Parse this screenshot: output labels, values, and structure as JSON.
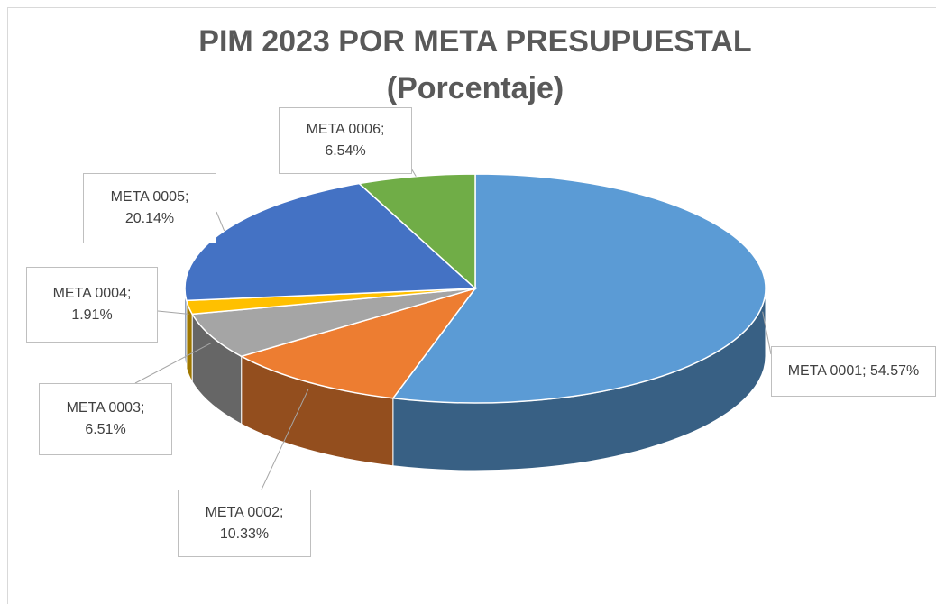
{
  "chart_data": {
    "type": "pie",
    "title": "PIM 2023 POR META PRESUPUESTAL (Porcentaje)",
    "values": [
      54.57,
      10.33,
      6.51,
      1.91,
      20.14,
      6.54
    ],
    "value_labels": [
      "META 0001; 54.57%",
      "META 0002; 10.33%",
      "META 0003; 6.51%",
      "META 0004; 1.91%",
      "META 0005; 20.14%",
      "META 0006; 6.54%"
    ],
    "colors": [
      "#5b9bd5",
      "#ed7d31",
      "#a5a5a5",
      "#ffc000",
      "#4472c4",
      "#70ad47"
    ]
  }
}
